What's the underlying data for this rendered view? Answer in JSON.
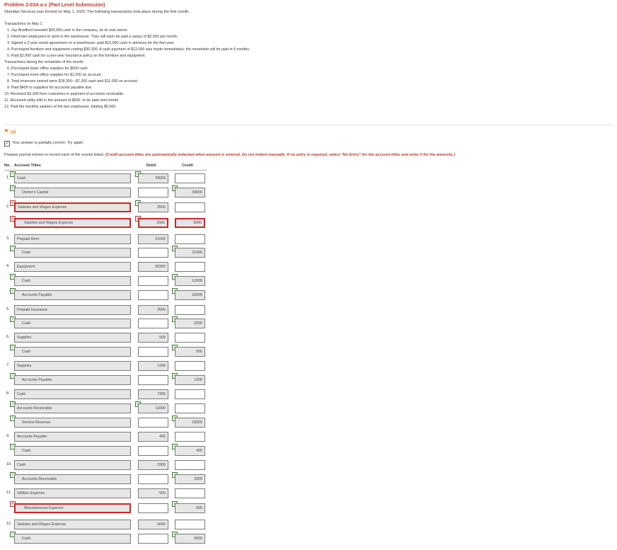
{
  "header": {
    "title": "Problem 2-03A a-c (Part Level Submission)",
    "intro": "Sheridan Services was formed on May 1, 2020. The following transactions took place during the first month."
  },
  "transactions": [
    "Transactions on May 1:",
    "1.  Jay Bradford invested $39,000 cash in the company, as its sole owner.",
    "2.  Hired two employees to work in the warehouse. They will each be paid a salary of $2,500 per month.",
    "3.  Signed a 2-year rental agreement on a warehouse; paid $21,000 cash in advance for the first year.",
    "4.  Purchased furniture and equipment costing $30,300. A cash payment of $12,000 was made immediately; the remainder will be paid in 6 months.",
    "5.  Paid $2,000 cash for a one-year insurance policy on the furniture and equipment.",
    "Transactions during the remainder of the month:",
    "6.  Purchased basic office supplies for $500 cash.",
    "7.  Purchased more office supplies for $1,200 on account.",
    "8.  Total revenues earned were $18,300—$7,300 cash and $11,000 on account.",
    "9.  Paid $400 to suppliers for accounts payable due.",
    "10.  Received $3,300 from customers in payment of accounts receivable.",
    "11.  Received utility bills in the amount of $500, to be paid next month.",
    "12.  Paid the monthly salaries of the two employees, totaling $5,000."
  ],
  "part": {
    "label": "(a)"
  },
  "status": {
    "text": "Your answer is partially correct.  Try again."
  },
  "instructions": {
    "normal": "Prepare journal entries to record each of the events listed. ",
    "red": "(Credit account titles are automatically indented when amount is entered. Do not indent manually. If no entry is required, select \"No Entry\" for the account titles and enter 0 for the amounts.)"
  },
  "table": {
    "headers": {
      "no": "No.",
      "account": "Account Titles",
      "debit": "Debit",
      "credit": "Credit"
    },
    "rows": [
      {
        "no": "1.",
        "account": "Cash",
        "debit": "39000",
        "credit": ""
      },
      {
        "no": "",
        "account": "Owner's Capital",
        "debit": "",
        "credit": "39000"
      },
      {
        "no": "2.",
        "account": "Salaries and Wages Expense",
        "debit": "2500",
        "credit": ""
      },
      {
        "no": "",
        "account": "Salaries and Wages Expense",
        "debit": "2500",
        "credit": "5000"
      },
      {
        "no": "3.",
        "account": "Prepaid Rent",
        "debit": "21000",
        "credit": ""
      },
      {
        "no": "",
        "account": "Cash",
        "debit": "",
        "credit": "21000"
      },
      {
        "no": "4.",
        "account": "Equipment",
        "debit": "30300",
        "credit": ""
      },
      {
        "no": "",
        "account": "Cash",
        "debit": "",
        "credit": "12000"
      },
      {
        "no": "",
        "account": "Accounts Payable",
        "debit": "",
        "credit": "18300"
      },
      {
        "no": "5.",
        "account": "Prepaid Insurance",
        "debit": "2000",
        "credit": ""
      },
      {
        "no": "",
        "account": "Cash",
        "debit": "",
        "credit": "2000"
      },
      {
        "no": "6.",
        "account": "Supplies",
        "debit": "500",
        "credit": ""
      },
      {
        "no": "",
        "account": "Cash",
        "debit": "",
        "credit": "500"
      },
      {
        "no": "7.",
        "account": "Supplies",
        "debit": "1200",
        "credit": ""
      },
      {
        "no": "",
        "account": "Accounts Payable",
        "debit": "",
        "credit": "1200"
      },
      {
        "no": "8.",
        "account": "Cash",
        "debit": "7300",
        "credit": ""
      },
      {
        "no": "",
        "account": "Accounts Receivable",
        "debit": "11000",
        "credit": ""
      },
      {
        "no": "",
        "account": "Service Revenue",
        "debit": "",
        "credit": "18300"
      },
      {
        "no": "9.",
        "account": "Accounts Payable",
        "debit": "400",
        "credit": ""
      },
      {
        "no": "",
        "account": "Cash",
        "debit": "",
        "credit": "400"
      },
      {
        "no": "10.",
        "account": "Cash",
        "debit": "3300",
        "credit": ""
      },
      {
        "no": "",
        "account": "Accounts Receivable",
        "debit": "",
        "credit": "3300"
      },
      {
        "no": "11.",
        "account": "Utilities Expense",
        "debit": "500",
        "credit": ""
      },
      {
        "no": "",
        "account": "Miscellaneous Expense",
        "debit": "",
        "credit": "500"
      },
      {
        "no": "12.",
        "account": "Salaries and Wages Expense",
        "debit": "5000",
        "credit": ""
      },
      {
        "no": "",
        "account": "Cash",
        "debit": "",
        "credit": "5000"
      }
    ]
  },
  "colors": {
    "title": "#c0392b",
    "error_border": "#d02525",
    "correct_mark": "#3a7d2c",
    "part_label": "#e67e22"
  }
}
